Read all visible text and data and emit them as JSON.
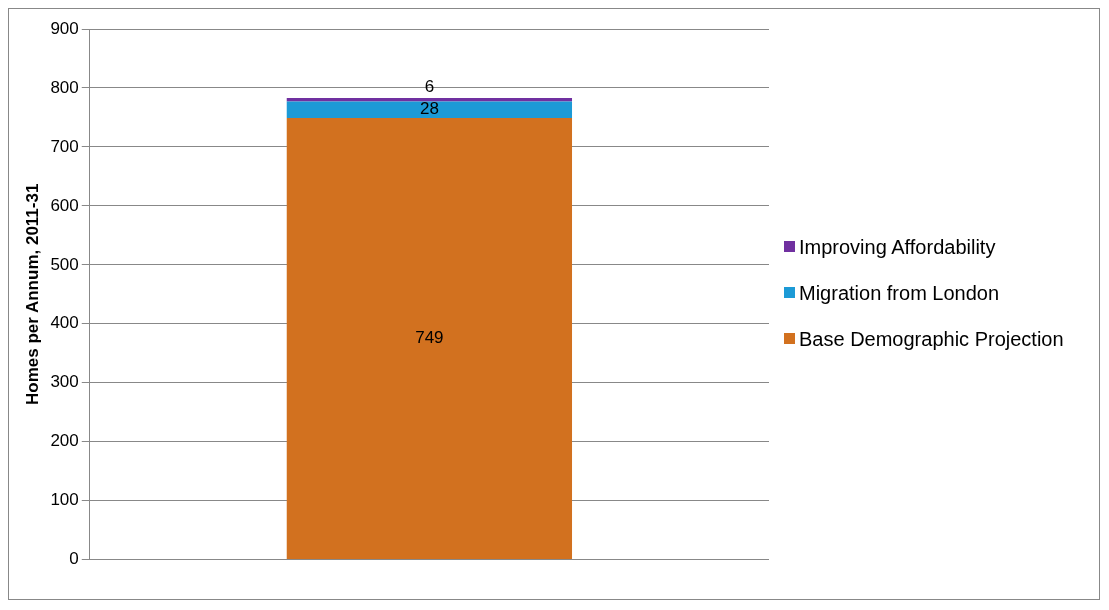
{
  "chart_data": {
    "type": "bar",
    "ylabel": "Homes per Annum, 2011-31",
    "categories": [
      null
    ],
    "stacked": true,
    "series": [
      {
        "name": "Base Demographic Projection",
        "color": "#d2711f",
        "values": [
          749
        ]
      },
      {
        "name": "Migration from London",
        "color": "#1c9ad6",
        "values": [
          28
        ]
      },
      {
        "name": "Improving Affordability",
        "color": "#7030a0",
        "values": [
          6
        ]
      }
    ],
    "ylim": [
      0,
      900
    ],
    "yticks": [
      0,
      100,
      200,
      300,
      400,
      500,
      600,
      700,
      800,
      900
    ],
    "grid": "y",
    "legend": "right",
    "data_labels": true
  }
}
